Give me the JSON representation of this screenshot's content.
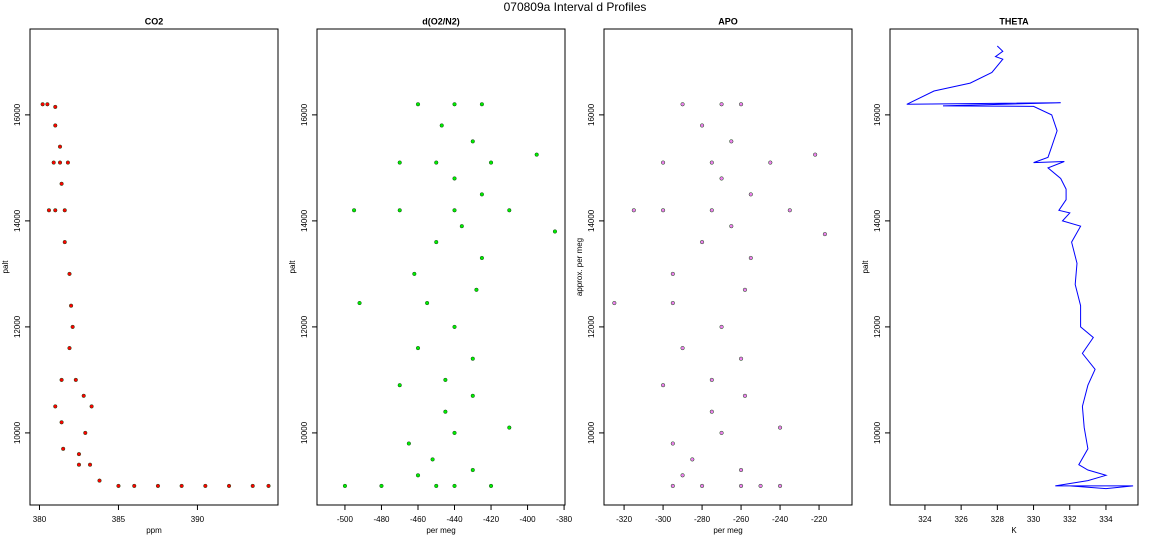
{
  "title": "070809a   Interval d Profiles",
  "chart_data": [
    {
      "type": "scatter",
      "title": "CO2",
      "x_label": "ppm",
      "y_label": "palt",
      "color": "#ff0000",
      "xlim": [
        379.4,
        395.1
      ],
      "ylim": [
        8640,
        17620
      ],
      "xticks": [
        380,
        385,
        390
      ],
      "yticks": [
        10000,
        12000,
        14000,
        16000
      ],
      "x": [
        380.5,
        380.2,
        381.0,
        381.0,
        381.3,
        381.3,
        380.9,
        381.8,
        381.4,
        381.0,
        380.6,
        381.6,
        381.6,
        381.9,
        382.0,
        382.1,
        381.9,
        381.4,
        382.3,
        382.8,
        383.3,
        381.4,
        382.9,
        381.5,
        382.5,
        383.2,
        383.8,
        385.0,
        386.0,
        387.5,
        389.0,
        390.5,
        392.0,
        393.5,
        394.5,
        381.0,
        382.5
      ],
      "values": [
        16200,
        16200,
        16150,
        15800,
        15400,
        15100,
        15100,
        15100,
        14700,
        14200,
        14200,
        14200,
        13600,
        13000,
        12400,
        12000,
        11600,
        11000,
        11000,
        10700,
        10500,
        10200,
        10000,
        9700,
        9600,
        9400,
        9100,
        9000,
        9000,
        9000,
        9000,
        9000,
        9000,
        9000,
        9000,
        10500,
        9400
      ]
    },
    {
      "type": "scatter",
      "title": "d(O2/N2)",
      "x_label": "per meg",
      "y_label": "palt",
      "color": "#00ee00",
      "xlim": [
        -515.3,
        -379.5
      ],
      "ylim": [
        8640,
        17620
      ],
      "xticks": [
        -500,
        -480,
        -460,
        -440,
        -420,
        -400,
        -380
      ],
      "yticks": [
        10000,
        12000,
        14000,
        16000
      ],
      "x": [
        -440,
        -460,
        -425,
        -447,
        -430,
        -450,
        -470,
        -420,
        -395,
        -440,
        -425,
        -440,
        -470,
        -410,
        -495,
        -385,
        -436,
        -450,
        -425,
        -462,
        -428,
        -455,
        -492,
        -440,
        -460,
        -430,
        -445,
        -470,
        -430,
        -445,
        -410,
        -440,
        -465,
        -452,
        -430,
        -460,
        -450,
        -480,
        -500,
        -420,
        -440
      ],
      "values": [
        16200,
        16200,
        16200,
        15800,
        15500,
        15100,
        15100,
        15100,
        15250,
        14800,
        14500,
        14200,
        14200,
        14200,
        14200,
        13800,
        13900,
        13600,
        13300,
        13000,
        12700,
        12450,
        12450,
        12000,
        11600,
        11400,
        11000,
        10900,
        10700,
        10400,
        10100,
        10000,
        9800,
        9500,
        9300,
        9200,
        9000,
        9000,
        9000,
        9000,
        9000
      ]
    },
    {
      "type": "scatter",
      "title": "APO",
      "x_label": "per meg",
      "y_label": "approx. per meg",
      "color": "#ee82ee",
      "xlim": [
        -330.3,
        -203.1
      ],
      "ylim": [
        8640,
        17620
      ],
      "xticks": [
        -320,
        -300,
        -280,
        -260,
        -240,
        -220
      ],
      "yticks": [
        10000,
        12000,
        14000,
        16000
      ],
      "x": [
        -270,
        -290,
        -260,
        -280,
        -265,
        -275,
        -300,
        -245,
        -222,
        -270,
        -255,
        -275,
        -300,
        -235,
        -315,
        -217,
        -265,
        -280,
        -255,
        -295,
        -258,
        -295,
        -325,
        -270,
        -290,
        -260,
        -275,
        -300,
        -258,
        -275,
        -240,
        -270,
        -295,
        -285,
        -260,
        -290,
        -280,
        -295,
        -260,
        -250,
        -240
      ],
      "values": [
        16200,
        16200,
        16200,
        15800,
        15500,
        15100,
        15100,
        15100,
        15250,
        14800,
        14500,
        14200,
        14200,
        14200,
        14200,
        13750,
        13900,
        13600,
        13300,
        13000,
        12700,
        12450,
        12450,
        12000,
        11600,
        11400,
        11000,
        10900,
        10700,
        10400,
        10100,
        10000,
        9800,
        9500,
        9300,
        9200,
        9000,
        9000,
        9000,
        9000,
        9000
      ]
    },
    {
      "type": "line",
      "title": "THETA",
      "x_label": "K",
      "y_label": "palt",
      "color": "#0000ff",
      "xlim": [
        322.07,
        335.77
      ],
      "ylim": [
        8640,
        17620
      ],
      "xticks": [
        324,
        326,
        328,
        330,
        332,
        334
      ],
      "yticks": [
        10000,
        12000,
        14000,
        16000
      ],
      "x": [
        328.0,
        328.3,
        327.9,
        328.3,
        327.7,
        326.5,
        324.5,
        323.0,
        331.5,
        325.0,
        330.0,
        331.0,
        331.3,
        331.0,
        330.8,
        330.0,
        331.7,
        330.8,
        331.5,
        331.8,
        331.8,
        331.4,
        332.0,
        331.6,
        332.6,
        332.1,
        332.4,
        332.3,
        332.6,
        332.6,
        333.3,
        332.7,
        333.4,
        333.0,
        332.7,
        332.8,
        333.0,
        332.5,
        333.0,
        334.0,
        333.0,
        331.2,
        333.5,
        335.5,
        334.0,
        332.0
      ],
      "values": [
        17300,
        17200,
        17100,
        17050,
        16800,
        16600,
        16450,
        16200,
        16230,
        16170,
        16160,
        16000,
        15700,
        15400,
        15200,
        15100,
        15120,
        15000,
        14800,
        14600,
        14400,
        14200,
        14150,
        14000,
        13900,
        13600,
        13200,
        12800,
        12400,
        12000,
        11800,
        11500,
        11200,
        10900,
        10500,
        10100,
        9700,
        9400,
        9300,
        9200,
        9100,
        9000,
        9000,
        9000,
        8950,
        9000
      ]
    }
  ]
}
